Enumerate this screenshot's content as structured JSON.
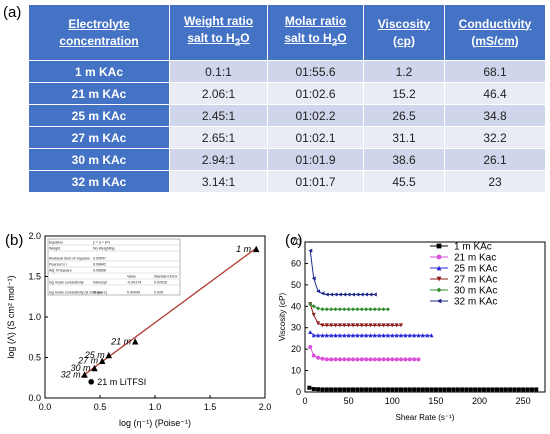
{
  "panel_labels": {
    "a": "(a)",
    "b": "(b)",
    "c": "(c)"
  },
  "table": {
    "headers": [
      {
        "line1": "Electrolyte",
        "line2": "concentration"
      },
      {
        "line1": "Weight ratio",
        "line2": "salt to H",
        "sub": "2",
        "tail": "O"
      },
      {
        "line1": "Molar ratio",
        "line2": "salt to H",
        "sub": "2",
        "tail": "O"
      },
      {
        "line1": "Viscosity",
        "line2": "(cp)"
      },
      {
        "line1": "Conductivity",
        "line2": "(mS/cm)"
      }
    ],
    "rows": [
      [
        "1 m KAc",
        "0.1:1",
        "01:55.6",
        "1.2",
        "68.1"
      ],
      [
        "21 m KAc",
        "2.06:1",
        "01:02.6",
        "15.2",
        "46.4"
      ],
      [
        "25 m KAc",
        "2.45:1",
        "01:02.2",
        "26.5",
        "34.8"
      ],
      [
        "27 m KAc",
        "2.65:1",
        "01:02.1",
        "31.1",
        "32.2"
      ],
      [
        "30 m KAc",
        "2.94:1",
        "01:01.9",
        "38.6",
        "26.1"
      ],
      [
        "32 m KAc",
        "3.14:1",
        "01:01.7",
        "45.5",
        "23"
      ]
    ]
  },
  "chart_data": [
    {
      "type": "scatter",
      "xlabel": "log (η⁻¹) (Poise⁻¹)",
      "ylabel": "log (Λ) (S cm² mol⁻¹)",
      "xlim": [
        0.0,
        2.0
      ],
      "ylim": [
        0.0,
        2.0
      ],
      "xticks": [
        "0.0",
        "0.5",
        "1.0",
        "1.5",
        "2.0"
      ],
      "yticks": [
        "0.0",
        "0.5",
        "1.0",
        "1.5",
        "2.0"
      ],
      "colors": {
        "fit_line": "#B03A2E",
        "kac_marker": "#000000"
      },
      "points": [
        {
          "label": "1 m",
          "x": 1.92,
          "y": 1.84
        },
        {
          "label": "21 m",
          "x": 0.82,
          "y": 0.7
        },
        {
          "label": "25 m",
          "x": 0.58,
          "y": 0.53
        },
        {
          "label": "27 m",
          "x": 0.52,
          "y": 0.46
        },
        {
          "label": "30 m",
          "x": 0.45,
          "y": 0.37
        },
        {
          "label": "32 m",
          "x": 0.36,
          "y": 0.29
        }
      ],
      "extra_point": {
        "label": "21 m LiTFSI",
        "x": 0.42,
        "y": 0.2
      },
      "fit": {
        "x": [
          0.33,
          1.93
        ],
        "y": [
          0.26,
          1.86
        ]
      },
      "stats_table": [
        [
          "Equation",
          "y = a + b*x",
          "",
          ""
        ],
        [
          "Weight",
          "No Weighting",
          "",
          ""
        ],
        [
          "Residual Sum of Squares",
          "0.00547",
          "",
          ""
        ],
        [
          "Pearson's r",
          "0.99842",
          "",
          ""
        ],
        [
          "Adj. R-Square",
          "0.99606",
          "",
          ""
        ],
        [
          "",
          "",
          "Value",
          "Standard Error"
        ],
        [
          "log molar conductivity",
          "Intercept",
          "-0.00174",
          "0.02616"
        ],
        [
          "log molar conductivity (S cm2 mol-1)",
          "Slope",
          "0.99049",
          "0.028"
        ]
      ]
    },
    {
      "type": "scatter",
      "xlabel": "Shear Rate (s⁻¹)",
      "ylabel": "Viscosity (cP)",
      "xlim": [
        0,
        275
      ],
      "ylim": [
        0,
        70
      ],
      "xticks": [
        0,
        50,
        100,
        150,
        200,
        250
      ],
      "yticks": [
        0,
        10,
        20,
        30,
        40,
        50,
        60,
        70
      ],
      "legend": "top-right",
      "series": [
        {
          "name": "1 m KAc",
          "color": "#000000",
          "marker": "square",
          "x": [
            5,
            10,
            15,
            20,
            25,
            30,
            35,
            40,
            45,
            50,
            55,
            60,
            65,
            70,
            75,
            80,
            85,
            90,
            95,
            100,
            105,
            110,
            115,
            120,
            125,
            130,
            135,
            140,
            145,
            150,
            155,
            160,
            165,
            170,
            175,
            180,
            185,
            190,
            195,
            200,
            205,
            210,
            215,
            220,
            225,
            230,
            235,
            240,
            245,
            250,
            255,
            260,
            265
          ],
          "y": [
            2.0,
            1.4,
            1.3,
            1.2,
            1.2,
            1.2,
            1.2,
            1.2,
            1.2,
            1.2,
            1.2,
            1.2,
            1.2,
            1.2,
            1.2,
            1.2,
            1.2,
            1.2,
            1.2,
            1.2,
            1.2,
            1.2,
            1.2,
            1.2,
            1.2,
            1.2,
            1.2,
            1.2,
            1.2,
            1.2,
            1.2,
            1.2,
            1.2,
            1.2,
            1.2,
            1.2,
            1.2,
            1.2,
            1.2,
            1.2,
            1.2,
            1.2,
            1.2,
            1.2,
            1.2,
            1.2,
            1.2,
            1.2,
            1.2,
            1.2,
            1.2,
            1.2,
            1.2
          ]
        },
        {
          "name": "21 m Kac",
          "color": "#D94FD8",
          "marker": "circle",
          "x": [
            6,
            10,
            15,
            20,
            25,
            30,
            35,
            40,
            45,
            50,
            55,
            60,
            65,
            70,
            75,
            80,
            85,
            90,
            95,
            100,
            105,
            110,
            115,
            120,
            125,
            130
          ],
          "y": [
            21,
            17,
            16,
            15.5,
            15.2,
            15.2,
            15.2,
            15.2,
            15.2,
            15.2,
            15.2,
            15.2,
            15.2,
            15.2,
            15.2,
            15.2,
            15.2,
            15.2,
            15.2,
            15.2,
            15.2,
            15.2,
            15.2,
            15.2,
            15.2,
            15.2
          ]
        },
        {
          "name": "25 m KAc",
          "color": "#2A2ADB",
          "marker": "triangle-up",
          "x": [
            6,
            10,
            15,
            20,
            25,
            30,
            35,
            40,
            45,
            50,
            55,
            60,
            65,
            70,
            75,
            80,
            85,
            90,
            95,
            100,
            105,
            110,
            115,
            120,
            125,
            130,
            135,
            140,
            145
          ],
          "y": [
            28,
            26.5,
            26.5,
            26.5,
            26.5,
            26.5,
            26.5,
            26.5,
            26.5,
            26.5,
            26.5,
            26.5,
            26.5,
            26.5,
            26.5,
            26.5,
            26.5,
            26.5,
            26.5,
            26.5,
            26.5,
            26.5,
            26.5,
            26.5,
            26.5,
            26.5,
            26.5,
            26.5,
            26.5
          ]
        },
        {
          "name": "27 m KAc",
          "color": "#8B1A1A",
          "marker": "triangle-down",
          "x": [
            6,
            10,
            15,
            20,
            25,
            30,
            35,
            40,
            45,
            50,
            55,
            60,
            65,
            70,
            75,
            80,
            85,
            90,
            95,
            100,
            105,
            110
          ],
          "y": [
            41,
            36,
            32,
            31.1,
            31.1,
            31.1,
            31.1,
            31.1,
            31.1,
            31.1,
            31.1,
            31.1,
            31.1,
            31.1,
            31.1,
            31.1,
            31.1,
            31.1,
            31.1,
            31.1,
            31.1,
            31.1
          ]
        },
        {
          "name": "30 m KAc",
          "color": "#2E8B2E",
          "marker": "diamond",
          "x": [
            6,
            10,
            15,
            20,
            25,
            30,
            35,
            40,
            45,
            50,
            55,
            60,
            65,
            70,
            75,
            80,
            85,
            90,
            95
          ],
          "y": [
            41,
            40,
            39,
            38.6,
            38.6,
            38.6,
            38.6,
            38.6,
            38.6,
            38.6,
            38.6,
            38.6,
            38.6,
            38.6,
            38.6,
            38.6,
            38.6,
            38.6,
            38.6
          ]
        },
        {
          "name": "32 m KAc",
          "color": "#1F2A8C",
          "marker": "triangle-left",
          "x": [
            6,
            10,
            15,
            20,
            25,
            30,
            35,
            40,
            45,
            50,
            55,
            60,
            65,
            70,
            75,
            80
          ],
          "y": [
            66,
            53,
            47,
            46,
            45.5,
            45.5,
            45.5,
            45.5,
            45.5,
            45.5,
            45.5,
            45.5,
            45.5,
            45.5,
            45.5,
            45.5
          ]
        }
      ]
    }
  ]
}
